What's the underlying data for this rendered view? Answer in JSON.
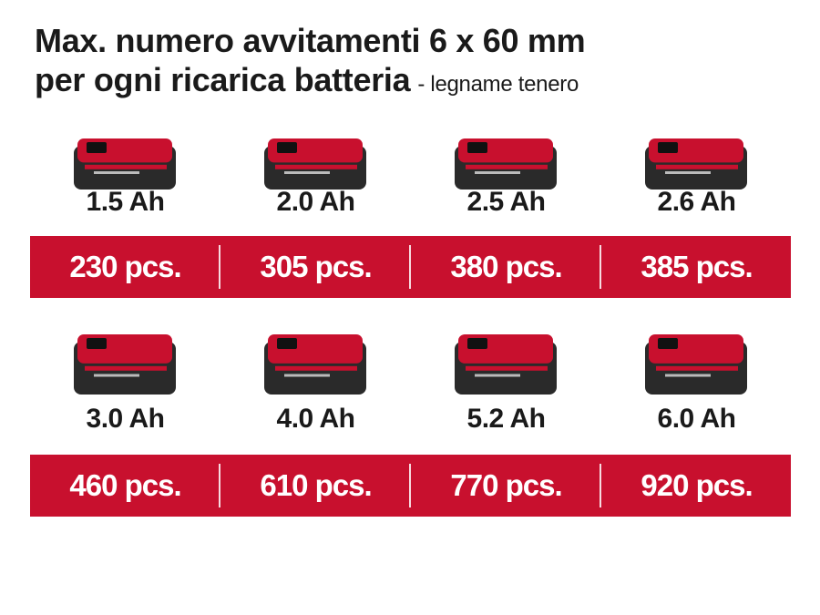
{
  "title": {
    "line1": "Max. numero avvitamenti 6 x 60 mm",
    "line2": "per ogni ricarica batteria",
    "suffix": "- legname tenero"
  },
  "rows": [
    [
      {
        "capacity": "1.5 Ah",
        "count": "230 pcs."
      },
      {
        "capacity": "2.0 Ah",
        "count": "305 pcs."
      },
      {
        "capacity": "2.5 Ah",
        "count": "380 pcs."
      },
      {
        "capacity": "2.6 Ah",
        "count": "385 pcs."
      }
    ],
    [
      {
        "capacity": "3.0 Ah",
        "count": "460 pcs."
      },
      {
        "capacity": "4.0 Ah",
        "count": "610 pcs."
      },
      {
        "capacity": "5.2 Ah",
        "count": "770 pcs."
      },
      {
        "capacity": "6.0 Ah",
        "count": "920 pcs."
      }
    ]
  ]
}
